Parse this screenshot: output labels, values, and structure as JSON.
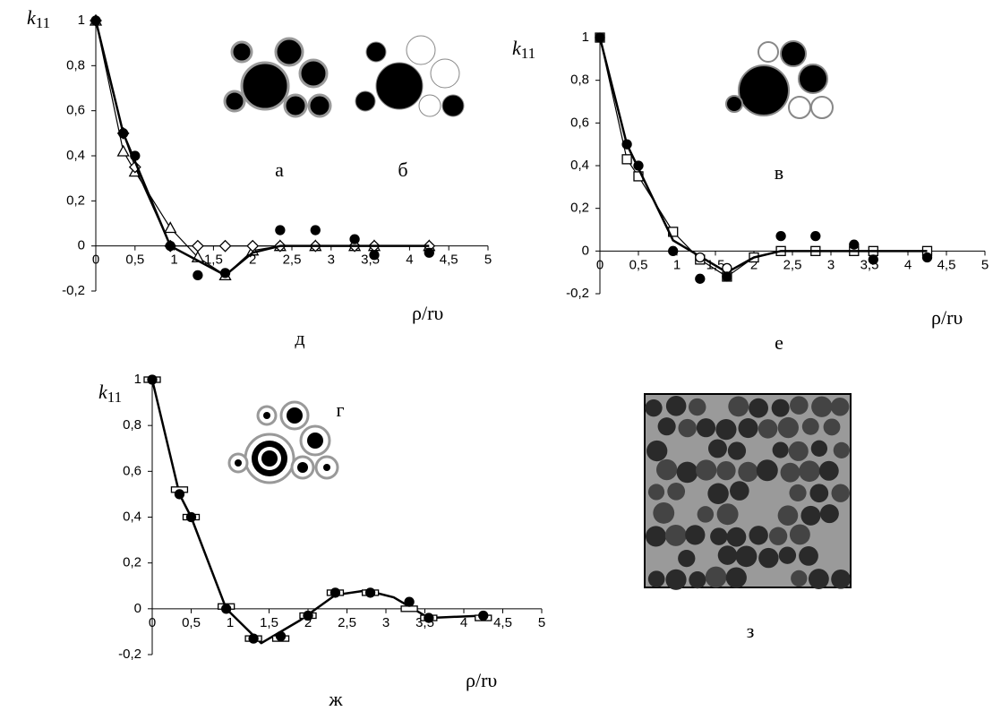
{
  "chart_data": [
    {
      "type": "scatter",
      "title": "д",
      "x_label": "ρ/rυ",
      "y_label_main": "k",
      "y_label_sub": "11",
      "inset_labels": [
        "а",
        "б"
      ],
      "xlim": [
        0,
        5
      ],
      "xticks": [
        0,
        {
          "value": 0.5,
          "label": "0,5"
        },
        1,
        {
          "value": 1.5,
          "label": "1,5"
        },
        2,
        {
          "value": 2.5,
          "label": "2,5"
        },
        3,
        {
          "value": 3.5,
          "label": "3,5"
        },
        4,
        {
          "value": 4.5,
          "label": "4,5"
        },
        5
      ],
      "ylim": [
        -0.2,
        1
      ],
      "yticks": [
        {
          "value": -0.2,
          "label": "-0,2"
        },
        0,
        {
          "value": 0.2,
          "label": "0,2"
        },
        {
          "value": 0.4,
          "label": "0,4"
        },
        {
          "value": 0.6,
          "label": "0,6"
        },
        {
          "value": 0.8,
          "label": "0,8"
        },
        1
      ],
      "series": [
        {
          "marker": "triangle",
          "line": true,
          "color": "#000000",
          "x": [
            0,
            0.35,
            0.5,
            0.95,
            1.3,
            1.65,
            2,
            2.35,
            2.8,
            3.3,
            3.55,
            4.25
          ],
          "values": [
            1,
            0.42,
            0.33,
            0.08,
            -0.05,
            -0.13,
            -0.02,
            0,
            0,
            0,
            0,
            0
          ]
        },
        {
          "marker": "diamond",
          "line": true,
          "color": "#000000",
          "x": [
            0,
            0.35,
            0.5,
            0.95,
            1.3,
            1.65,
            2,
            2.35,
            2.8,
            3.3,
            3.55,
            4.25
          ],
          "values": [
            1,
            0.5,
            0.35,
            0,
            0,
            0,
            0,
            0,
            0,
            0,
            0,
            0
          ]
        },
        {
          "marker": "none",
          "line": true,
          "bold": true,
          "color": "#000000",
          "x": [
            0,
            0.35,
            0.95,
            1.65,
            2,
            2.35,
            2.8,
            3.3,
            4.25
          ],
          "values": [
            1,
            0.5,
            0,
            -0.13,
            -0.03,
            0,
            0,
            0,
            0
          ]
        },
        {
          "marker": "circle",
          "line": false,
          "color": "#000000",
          "x": [
            0,
            0.35,
            0.5,
            0.95,
            1.3,
            1.65,
            2.35,
            2.8,
            3.3,
            3.55,
            4.25
          ],
          "values": [
            1,
            0.5,
            0.4,
            0,
            -0.13,
            -0.12,
            0.07,
            0.07,
            0.03,
            -0.04,
            -0.03
          ]
        }
      ]
    },
    {
      "type": "scatter",
      "title": "е",
      "x_label": "ρ/rυ",
      "y_label_main": "k",
      "y_label_sub": "11",
      "inset_labels": [
        "в"
      ],
      "xlim": [
        0,
        5
      ],
      "xticks": [
        0,
        {
          "value": 0.5,
          "label": "0,5"
        },
        1,
        {
          "value": 1.5,
          "label": "1,5"
        },
        2,
        {
          "value": 2.5,
          "label": "2,5"
        },
        3,
        {
          "value": 3.5,
          "label": "3,5"
        },
        4,
        {
          "value": 4.5,
          "label": "4,5"
        },
        5
      ],
      "ylim": [
        -0.2,
        1
      ],
      "yticks": [
        {
          "value": -0.2,
          "label": "-0,2"
        },
        0,
        {
          "value": 0.2,
          "label": "0,2"
        },
        {
          "value": 0.4,
          "label": "0,4"
        },
        {
          "value": 0.6,
          "label": "0,6"
        },
        {
          "value": 0.8,
          "label": "0,8"
        },
        1
      ],
      "series": [
        {
          "marker": "square",
          "line": true,
          "color": "#000000",
          "x": [
            0,
            0.35,
            0.5,
            0.95,
            1.3,
            1.65,
            2,
            2.35,
            2.8,
            3.3,
            3.55,
            4.25
          ],
          "values": [
            1,
            0.43,
            0.35,
            0.09,
            -0.04,
            -0.12,
            -0.03,
            0,
            0,
            0,
            0,
            0
          ]
        },
        {
          "marker": "none",
          "line": true,
          "bold": true,
          "color": "#000000",
          "x": [
            0,
            0.35,
            0.95,
            1.65,
            2,
            2.35,
            2.8,
            3.3,
            4.25
          ],
          "values": [
            1,
            0.5,
            0.05,
            -0.1,
            -0.03,
            0,
            0,
            0,
            0
          ]
        },
        {
          "marker": "open-circle",
          "line": false,
          "color": "#000000",
          "x": [
            1.3,
            1.65
          ],
          "values": [
            -0.03,
            -0.08
          ]
        },
        {
          "marker": "circle",
          "line": false,
          "color": "#000000",
          "x": [
            0,
            0.35,
            0.5,
            0.95,
            1.3,
            1.65,
            2.35,
            2.8,
            3.3,
            3.55,
            4.25
          ],
          "values": [
            1,
            0.5,
            0.4,
            0,
            -0.13,
            -0.12,
            0.07,
            0.07,
            0.03,
            -0.04,
            -0.03
          ]
        }
      ]
    },
    {
      "type": "scatter",
      "title": "ж",
      "x_label": "ρ/rυ",
      "y_label_main": "k",
      "y_label_sub": "11",
      "inset_labels": [
        "г"
      ],
      "xlim": [
        0,
        5
      ],
      "xticks": [
        0,
        {
          "value": 0.5,
          "label": "0,5"
        },
        1,
        {
          "value": 1.5,
          "label": "1,5"
        },
        2,
        {
          "value": 2.5,
          "label": "2,5"
        },
        3,
        {
          "value": 3.5,
          "label": "3,5"
        },
        4,
        {
          "value": 4.5,
          "label": "4,5"
        },
        5
      ],
      "ylim": [
        -0.2,
        1
      ],
      "yticks": [
        {
          "value": -0.2,
          "label": "-0,2"
        },
        0,
        {
          "value": 0.2,
          "label": "0,2"
        },
        {
          "value": 0.4,
          "label": "0,4"
        },
        {
          "value": 0.6,
          "label": "0,6"
        },
        {
          "value": 0.8,
          "label": "0,8"
        },
        1
      ],
      "series": [
        {
          "marker": "none",
          "line": true,
          "bold": true,
          "color": "#000000",
          "x": [
            0,
            0.35,
            0.5,
            0.95,
            1.4,
            1.9,
            2.35,
            2.75,
            3.1,
            3.55,
            4.25
          ],
          "values": [
            1,
            0.5,
            0.4,
            0,
            -0.15,
            -0.05,
            0.06,
            0.08,
            0.05,
            -0.04,
            -0.03
          ]
        },
        {
          "marker": "dash",
          "line": false,
          "color": "#000000",
          "x": [
            0,
            0.35,
            0.5,
            0.95,
            1.3,
            1.65,
            2,
            2.35,
            2.8,
            3.3,
            3.55,
            4.25
          ],
          "values": [
            1,
            0.52,
            0.4,
            0.01,
            -0.13,
            -0.13,
            -0.03,
            0.07,
            0.07,
            0,
            -0.04,
            -0.04
          ]
        },
        {
          "marker": "circle",
          "line": false,
          "color": "#000000",
          "x": [
            0,
            0.35,
            0.5,
            0.95,
            1.3,
            1.65,
            2,
            2.35,
            2.8,
            3.3,
            3.55,
            4.25
          ],
          "values": [
            1,
            0.5,
            0.4,
            0,
            -0.13,
            -0.12,
            -0.03,
            0.07,
            0.07,
            0.03,
            -0.04,
            -0.03
          ]
        }
      ]
    }
  ],
  "photo_label": "з"
}
